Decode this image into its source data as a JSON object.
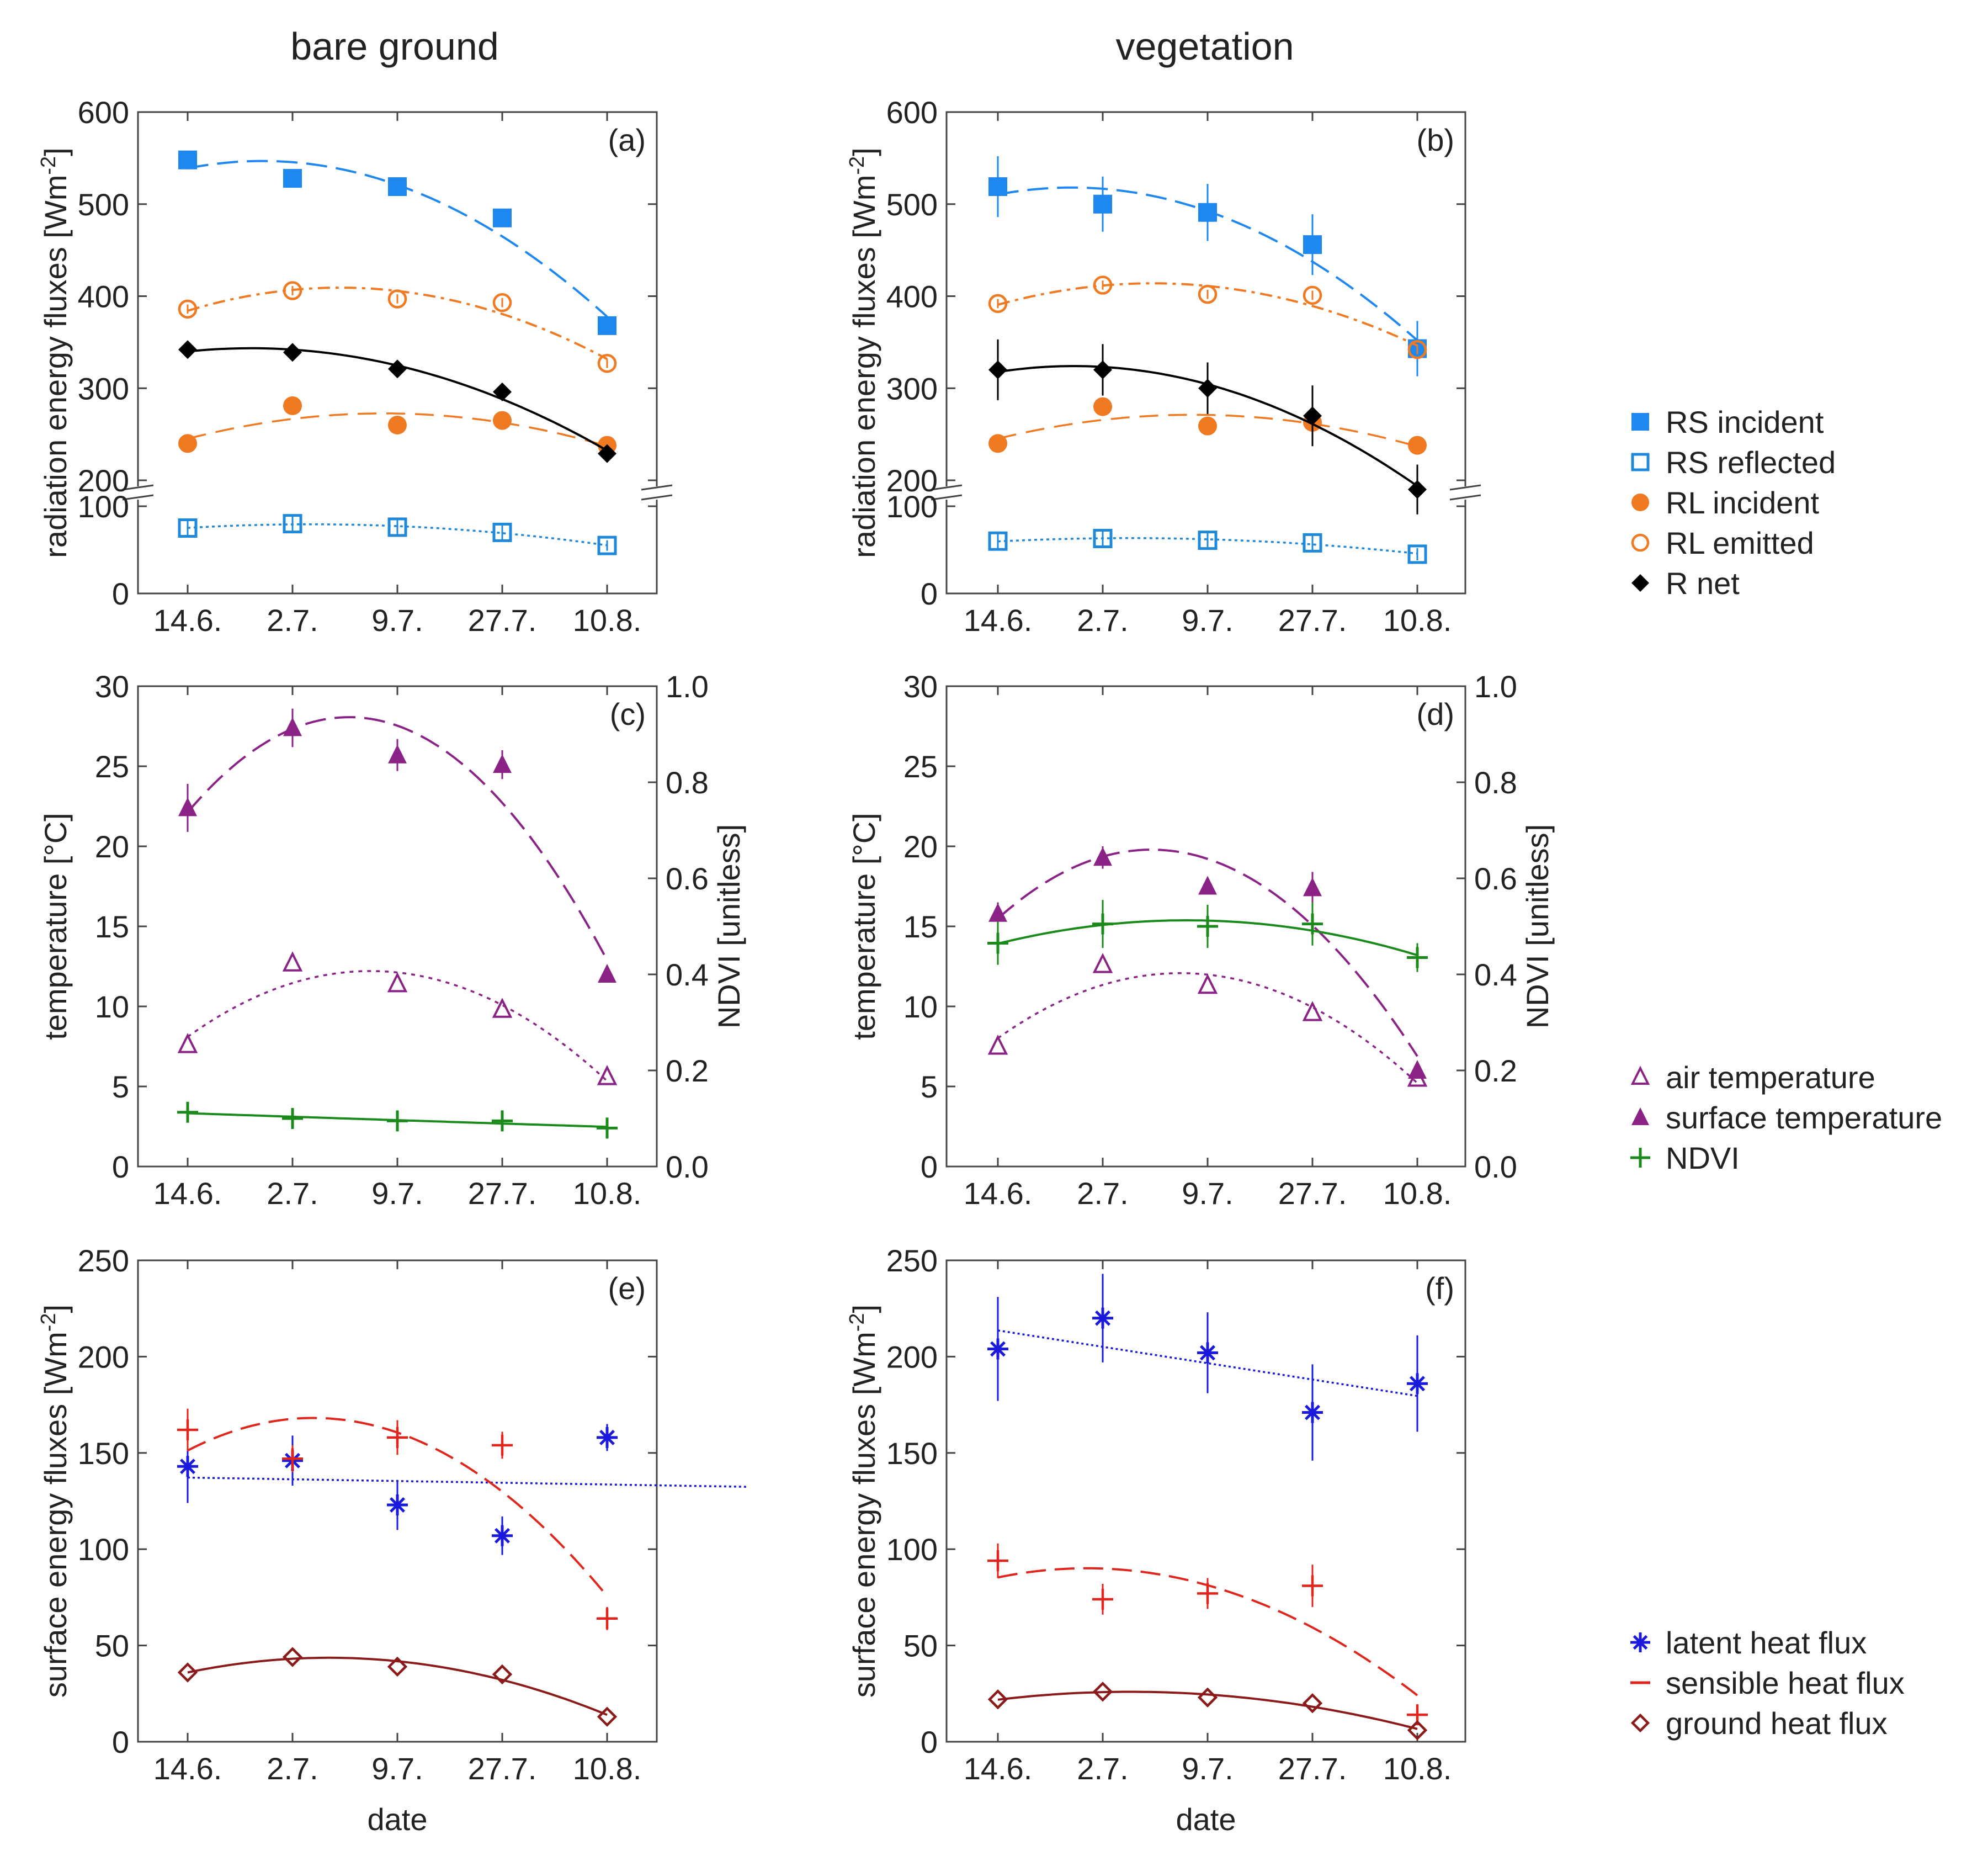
{
  "columns": {
    "left_title": "bare ground",
    "right_title": "vegetation"
  },
  "colors": {
    "rs": "#1e88f0",
    "rs_reflected": "#1f88d8",
    "rl": "#f07a22",
    "rnet": "#000000",
    "temperature": "#8b2286",
    "ndvi": "#1a8a1a",
    "latent": "#1a1adc",
    "sensible": "#e0261c",
    "ground": "#8b1a1a"
  },
  "common": {
    "dates": [
      "14.6.",
      "2.7.",
      "9.7.",
      "27.7.",
      "10.8."
    ],
    "xlabel": "date"
  },
  "rows": [
    {
      "ylabel": "radiation energy fluxes [Wm",
      "ylabel_sup": "-2",
      "ylabel_end": "]",
      "yticks": [
        "0",
        "100",
        "200",
        "300",
        "400",
        "500",
        "600"
      ],
      "legend": [
        {
          "label": "RS incident",
          "marker": "square-filled",
          "color": "#1e88f0"
        },
        {
          "label": "RS reflected",
          "marker": "square-open",
          "color": "#1f88d8"
        },
        {
          "label": "RL incident",
          "marker": "circle-filled",
          "color": "#f07a22"
        },
        {
          "label": "RL emitted",
          "marker": "circle-open",
          "color": "#f07a22"
        },
        {
          "label": "R net",
          "marker": "diamond-filled",
          "color": "#000000"
        }
      ]
    },
    {
      "ylabel": "temperature [°C]",
      "ylabel2": "NDVI [unitless]",
      "yticks": [
        "0",
        "5",
        "10",
        "15",
        "20",
        "25",
        "30"
      ],
      "y2ticks": [
        "0.0",
        "0.2",
        "0.4",
        "0.6",
        "0.8",
        "1.0"
      ],
      "legend": [
        {
          "label": "air temperature",
          "marker": "triangle-open",
          "color": "#8b2286"
        },
        {
          "label": "surface temperature",
          "marker": "triangle-filled",
          "color": "#8b2286"
        },
        {
          "label": "NDVI",
          "marker": "plus",
          "color": "#1a8a1a"
        }
      ]
    },
    {
      "ylabel": "surface energy fluxes [Wm",
      "ylabel_sup": "-2",
      "ylabel_end": "]",
      "yticks": [
        "0",
        "50",
        "100",
        "150",
        "200",
        "250"
      ],
      "legend": [
        {
          "label": "latent heat flux",
          "marker": "asterisk",
          "color": "#1a1adc"
        },
        {
          "label": "sensible heat flux",
          "marker": "dash",
          "color": "#e0261c"
        },
        {
          "label": "ground heat flux",
          "marker": "diamond-open",
          "color": "#8b1a1a"
        }
      ]
    }
  ],
  "chart_data": [
    {
      "panel": "(a)",
      "type": "scatter",
      "title": "bare ground",
      "xlabel": "",
      "ylabel": "radiation energy fluxes [Wm-2]",
      "categories": [
        "14.6.",
        "2.7.",
        "9.7.",
        "27.7.",
        "10.8."
      ],
      "y_axis_break": {
        "lower_range": [
          0,
          100
        ],
        "upper_range": [
          200,
          600
        ]
      },
      "series": [
        {
          "name": "RS incident",
          "values": [
            548,
            528,
            519,
            485,
            368
          ],
          "errors": [
            0,
            0,
            0,
            0,
            0
          ],
          "fit_degree": 2
        },
        {
          "name": "RS reflected",
          "values": [
            75,
            80,
            76,
            70,
            55
          ],
          "errors": [
            8,
            8,
            8,
            8,
            6
          ],
          "fit_degree": 2
        },
        {
          "name": "RL incident",
          "values": [
            240,
            281,
            260,
            265,
            238
          ],
          "errors": [
            0,
            0,
            0,
            0,
            0
          ],
          "fit_degree": 2
        },
        {
          "name": "RL emitted",
          "values": [
            386,
            406,
            397,
            393,
            327
          ],
          "errors": [
            5,
            5,
            5,
            5,
            5
          ],
          "fit_degree": 2
        },
        {
          "name": "R net",
          "values": [
            342,
            339,
            321,
            296,
            229
          ],
          "errors": [
            6,
            5,
            5,
            5,
            5
          ],
          "fit_degree": 2
        }
      ]
    },
    {
      "panel": "(b)",
      "type": "scatter",
      "title": "vegetation",
      "xlabel": "",
      "ylabel": "radiation energy fluxes [Wm-2]",
      "categories": [
        "14.6.",
        "2.7.",
        "9.7.",
        "27.7.",
        "10.8."
      ],
      "y_axis_break": {
        "lower_range": [
          0,
          100
        ],
        "upper_range": [
          200,
          600
        ]
      },
      "series": [
        {
          "name": "RS incident",
          "values": [
            519,
            500,
            491,
            456,
            343
          ],
          "errors": [
            33,
            30,
            31,
            33,
            30
          ],
          "fit_degree": 2
        },
        {
          "name": "RS reflected",
          "values": [
            60,
            63,
            61,
            58,
            45
          ],
          "errors": [
            8,
            8,
            8,
            8,
            7
          ],
          "fit_degree": 2
        },
        {
          "name": "RL incident",
          "values": [
            240,
            280,
            259,
            263,
            238
          ],
          "errors": [
            0,
            0,
            0,
            0,
            0
          ],
          "fit_degree": 2
        },
        {
          "name": "RL emitted",
          "values": [
            392,
            412,
            402,
            401,
            342
          ],
          "errors": [
            5,
            5,
            5,
            5,
            5
          ],
          "fit_degree": 2
        },
        {
          "name": "R net",
          "values": [
            320,
            320,
            300,
            270,
            190
          ],
          "errors": [
            33,
            28,
            28,
            33,
            27
          ],
          "fit_degree": 2
        }
      ]
    },
    {
      "panel": "(c)",
      "type": "scatter",
      "title": "",
      "xlabel": "",
      "ylabel": "temperature [°C]",
      "ylabel2": "NDVI [unitless]",
      "categories": [
        "14.6.",
        "2.7.",
        "9.7.",
        "27.7.",
        "10.8."
      ],
      "ylim": [
        0,
        30
      ],
      "y2lim": [
        0,
        1
      ],
      "series": [
        {
          "name": "air temperature",
          "axis": "left",
          "values": [
            7.6,
            12.7,
            11.4,
            9.8,
            5.6
          ],
          "errors": [
            0,
            0,
            0,
            0,
            0
          ],
          "fit_degree": 2
        },
        {
          "name": "surface temperature",
          "axis": "left",
          "values": [
            22.4,
            27.4,
            25.7,
            25.1,
            12.0
          ],
          "errors": [
            1.5,
            1.2,
            1.0,
            0.9,
            0.4
          ],
          "fit_degree": 2
        },
        {
          "name": "NDVI",
          "axis": "right",
          "values": [
            0.113,
            0.1,
            0.095,
            0.095,
            0.08
          ],
          "errors": [
            0.02,
            0.015,
            0.015,
            0.015,
            0.015
          ],
          "fit_degree": 2
        }
      ]
    },
    {
      "panel": "(d)",
      "type": "scatter",
      "title": "",
      "xlabel": "",
      "ylabel": "temperature [°C]",
      "ylabel2": "NDVI [unitless]",
      "categories": [
        "14.6.",
        "2.7.",
        "9.7.",
        "27.7.",
        "10.8."
      ],
      "ylim": [
        0,
        30
      ],
      "y2lim": [
        0,
        1
      ],
      "series": [
        {
          "name": "air temperature",
          "axis": "left",
          "values": [
            7.5,
            12.6,
            11.3,
            9.6,
            5.5
          ],
          "errors": [
            0,
            0,
            0,
            0,
            0
          ],
          "fit_degree": 2
        },
        {
          "name": "surface temperature",
          "axis": "left",
          "values": [
            15.8,
            19.3,
            17.5,
            17.4,
            6.0
          ],
          "errors": [
            0.7,
            0.7,
            0.5,
            1.0,
            0.5
          ],
          "fit_degree": 2
        },
        {
          "name": "NDVI",
          "axis": "right",
          "values": [
            0.465,
            0.505,
            0.5,
            0.505,
            0.435
          ],
          "errors": [
            0.045,
            0.05,
            0.045,
            0.045,
            0.03
          ],
          "fit_degree": 2
        }
      ]
    },
    {
      "panel": "(e)",
      "type": "scatter",
      "title": "",
      "xlabel": "date",
      "ylabel": "surface energy fluxes [Wm-2]",
      "categories": [
        "14.6.",
        "2.7.",
        "9.7.",
        "27.7.",
        "10.8."
      ],
      "ylim": [
        0,
        250
      ],
      "series": [
        {
          "name": "latent heat flux",
          "values": [
            143,
            146,
            123,
            107,
            158
          ],
          "errors": [
            19,
            13,
            13,
            10,
            7
          ],
          "fit_degree": 1
        },
        {
          "name": "sensible heat flux",
          "values": [
            162,
            147,
            158,
            154,
            64
          ],
          "errors": [
            11,
            7,
            9,
            7,
            6
          ],
          "fit_degree": 2
        },
        {
          "name": "ground heat flux",
          "values": [
            36,
            44,
            39,
            35,
            13
          ],
          "errors": [
            0,
            0,
            0,
            0,
            0
          ],
          "fit_degree": 2
        }
      ]
    },
    {
      "panel": "(f)",
      "type": "scatter",
      "title": "",
      "xlabel": "date",
      "ylabel": "surface energy fluxes [Wm-2]",
      "categories": [
        "14.6.",
        "2.7.",
        "9.7.",
        "27.7.",
        "10.8."
      ],
      "ylim": [
        0,
        250
      ],
      "series": [
        {
          "name": "latent heat flux",
          "values": [
            204,
            220,
            202,
            171,
            186
          ],
          "errors": [
            27,
            23,
            21,
            25,
            25
          ],
          "fit_degree": 1
        },
        {
          "name": "sensible heat flux",
          "values": [
            94,
            74,
            77,
            81,
            14
          ],
          "errors": [
            9,
            8,
            8,
            11,
            5
          ],
          "fit_degree": 2
        },
        {
          "name": "ground heat flux",
          "values": [
            22,
            26,
            23,
            20,
            6
          ],
          "errors": [
            0,
            0,
            0,
            0,
            0
          ],
          "fit_degree": 2
        }
      ]
    }
  ]
}
